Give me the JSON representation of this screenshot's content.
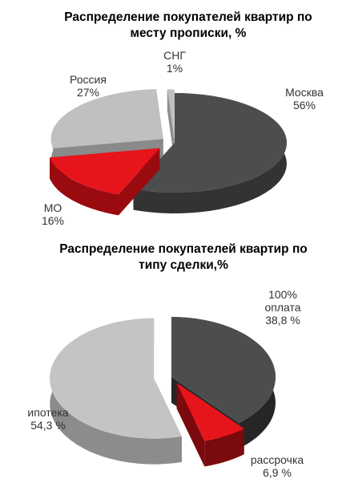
{
  "chart_data": [
    {
      "type": "pie",
      "title": "Распределение покупателей квартир по\nместу прописки, %",
      "slices": [
        {
          "label": "Москва",
          "value_text": "56%",
          "value": 56,
          "color": "#4d4d4d",
          "side": "#333333",
          "explode": 0
        },
        {
          "label": "МО",
          "value_text": "16%",
          "value": 16,
          "color": "#e8141c",
          "side": "#9a0b10",
          "explode": 24
        },
        {
          "label": "Россия",
          "value_text": "27%",
          "value": 27,
          "color": "#c0c0c0",
          "side": "#8a8a8a",
          "explode": 18
        },
        {
          "label": "СНГ",
          "value_text": "1%",
          "value": 1,
          "color": "#bfbfbf",
          "side": "#8e8e8e",
          "explode": 10
        }
      ]
    },
    {
      "type": "pie",
      "title": "Распределение покупателей квартир по\nтипу сделки,%",
      "slices": [
        {
          "label": "100%\nоплата",
          "value_text": "38,8 %",
          "value": 38.8,
          "color": "#4d4d4d",
          "side": "#262626",
          "explode": 0
        },
        {
          "label": "рассрочка",
          "value_text": "6,9 %",
          "value": 6.9,
          "color": "#e8141c",
          "side": "#7a0a0e",
          "explode": 14
        },
        {
          "label": "ипотека",
          "value_text": "54,3 %",
          "value": 54.3,
          "color": "#c4c4c4",
          "side": "#8c8c8c",
          "explode": 22
        }
      ]
    }
  ]
}
